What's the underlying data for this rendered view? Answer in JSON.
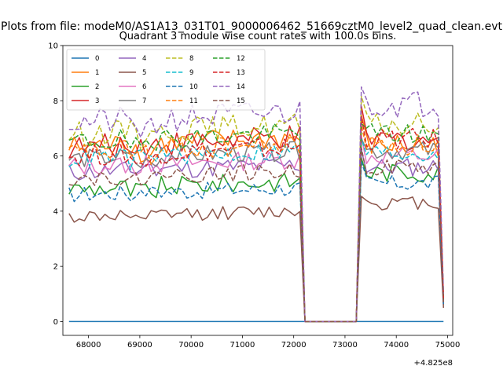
{
  "suptitle": "Plots from file: modeM0/AS1A13_031T01_9000006462_51669cztM0_level2_quad_clean.evt",
  "chart_data": {
    "type": "line",
    "title": "Quadrant 3 module wise count rates with 100.0s bins.",
    "xlabel": "",
    "ylabel": "",
    "x_offset_text": "+4.825e8",
    "xlim": [
      67500,
      75100
    ],
    "ylim": [
      -0.5,
      10
    ],
    "xticks": [
      68000,
      69000,
      70000,
      71000,
      72000,
      73000,
      74000,
      75000
    ],
    "xtick_labels": [
      "68000",
      "69000",
      "70000",
      "71000",
      "72000",
      "73000",
      "74000",
      "75000"
    ],
    "yticks": [
      0,
      2,
      4,
      6,
      8,
      10
    ],
    "ytick_labels": [
      "0",
      "2",
      "4",
      "6",
      "8",
      "10"
    ],
    "grid": false,
    "legend": {
      "placement": "upper-left",
      "columns": 4
    },
    "segments": [
      {
        "x_start": 67620,
        "x_end": 72120,
        "step": 100
      },
      {
        "x_start": 73320,
        "x_end": 74920,
        "step": 100
      }
    ],
    "gap": {
      "x": [
        72220,
        73220
      ],
      "value": 0
    },
    "series": [
      {
        "name": "0",
        "color": "#1f77b4",
        "dash": "solid",
        "level1": 0.0,
        "level2": 0.0,
        "spread": 0.0,
        "end": 0.0
      },
      {
        "name": "1",
        "color": "#ff7f0e",
        "dash": "solid",
        "level1": 6.3,
        "level2": 6.4,
        "spread": 0.45,
        "end": 0.9
      },
      {
        "name": "2",
        "color": "#2ca02c",
        "dash": "solid",
        "level1": 4.8,
        "level2": 5.4,
        "spread": 0.35,
        "end": 0.7
      },
      {
        "name": "3",
        "color": "#d62728",
        "dash": "solid",
        "level1": 6.3,
        "level2": 6.6,
        "spread": 0.45,
        "end": 0.8
      },
      {
        "name": "4",
        "color": "#9467bd",
        "dash": "solid",
        "level1": 5.4,
        "level2": 5.6,
        "spread": 0.35,
        "end": 0.7
      },
      {
        "name": "5",
        "color": "#8c564b",
        "dash": "solid",
        "level1": 3.8,
        "level2": 4.3,
        "spread": 0.25,
        "end": 0.5
      },
      {
        "name": "6",
        "color": "#e377c2",
        "dash": "solid",
        "level1": 5.6,
        "level2": 6.0,
        "spread": 0.35,
        "end": 0.7
      },
      {
        "name": "7",
        "color": "#7f7f7f",
        "dash": "solid",
        "level1": 5.9,
        "level2": 6.2,
        "spread": 0.35,
        "end": 0.7
      },
      {
        "name": "8",
        "color": "#bcbd22",
        "dash": "dashed",
        "level1": 6.8,
        "level2": 7.1,
        "spread": 0.45,
        "end": 0.9
      },
      {
        "name": "9",
        "color": "#17becf",
        "dash": "dashed",
        "level1": 5.9,
        "level2": 6.1,
        "spread": 0.35,
        "end": 0.8
      },
      {
        "name": "10",
        "color": "#1f77b4",
        "dash": "dashed",
        "level1": 4.6,
        "level2": 5.0,
        "spread": 0.3,
        "end": 0.6
      },
      {
        "name": "11",
        "color": "#ff7f0e",
        "dash": "dashed",
        "level1": 6.1,
        "level2": 6.4,
        "spread": 0.4,
        "end": 0.8
      },
      {
        "name": "12",
        "color": "#2ca02c",
        "dash": "dashed",
        "level1": 6.5,
        "level2": 6.8,
        "spread": 0.4,
        "end": 0.8
      },
      {
        "name": "13",
        "color": "#d62728",
        "dash": "dashed",
        "level1": 6.0,
        "level2": 6.6,
        "spread": 0.4,
        "end": 0.8
      },
      {
        "name": "14",
        "color": "#9467bd",
        "dash": "dashed",
        "level1": 7.2,
        "level2": 7.9,
        "spread": 0.5,
        "end": 1.0
      },
      {
        "name": "15",
        "color": "#8c564b",
        "dash": "dashed",
        "level1": 5.2,
        "level2": 5.6,
        "spread": 0.3,
        "end": 0.6
      }
    ]
  }
}
